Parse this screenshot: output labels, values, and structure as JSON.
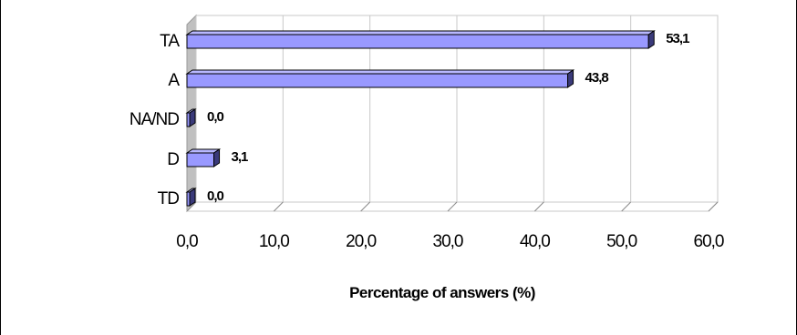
{
  "chart_data": {
    "type": "bar",
    "orientation": "horizontal",
    "categories": [
      "TA",
      "A",
      "NA/ND",
      "D",
      "TD"
    ],
    "values": [
      53.1,
      43.8,
      0.0,
      3.1,
      0.0
    ],
    "data_labels": [
      "53,1",
      "43,8",
      "0,0",
      "3,1",
      "0,0"
    ],
    "xlim": [
      0,
      60
    ],
    "x_ticks": [
      "0,0",
      "10,0",
      "20,0",
      "30,0",
      "40,0",
      "50,0",
      "60,0"
    ],
    "xlabel": "Percentage of answers (%)",
    "ylabel": "",
    "title": "",
    "grid": "vertical",
    "legend": "none",
    "colors": {
      "bar_front": "#9999ff",
      "bar_top": "#b8b8ff",
      "bar_side": "#3a3a7a",
      "wall": "#c0c0c0",
      "grid": "#c8c8c8"
    }
  }
}
